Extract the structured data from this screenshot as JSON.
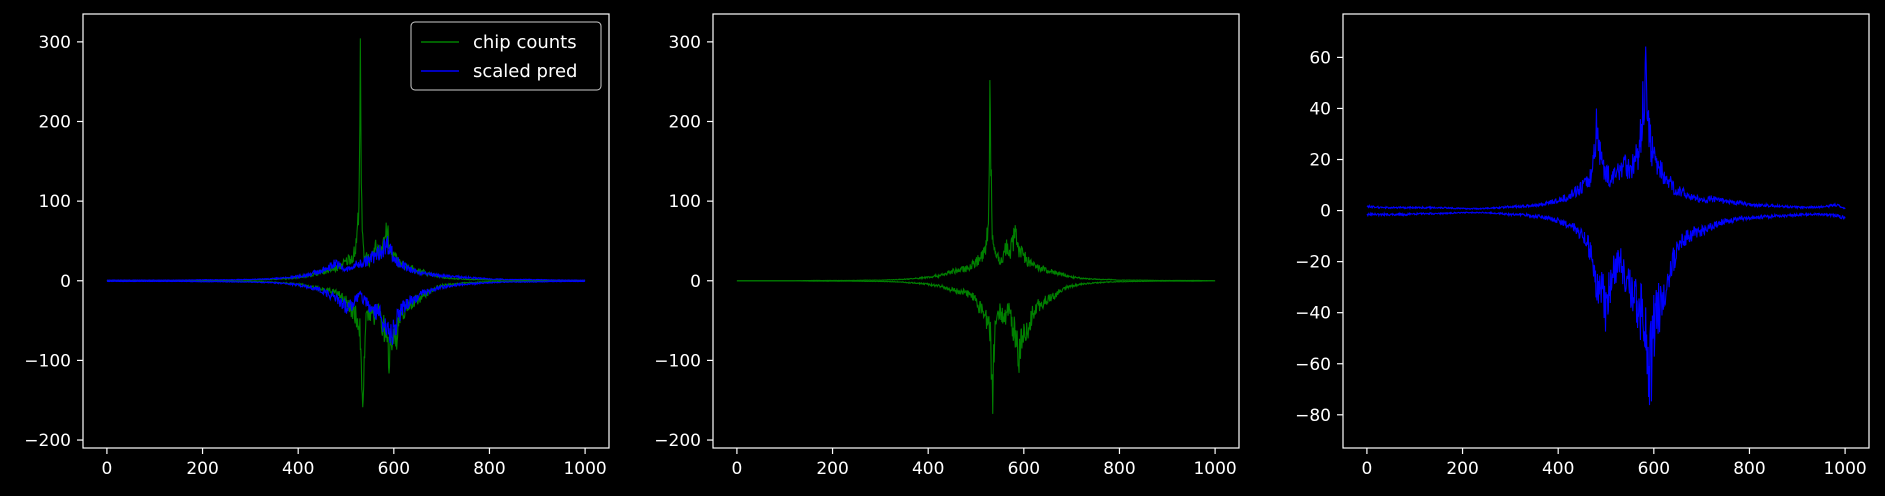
{
  "figure": {
    "background": "#000000",
    "axis_color": "#ffffff"
  },
  "chart_data": [
    {
      "type": "line",
      "xlim": [
        -50,
        1050
      ],
      "ylim": [
        -210,
        335
      ],
      "xticks": [
        0,
        200,
        400,
        600,
        800,
        1000
      ],
      "yticks": [
        -200,
        -100,
        0,
        100,
        200,
        300
      ],
      "legend": {
        "placement": "top-right"
      },
      "series": [
        {
          "name": "chip counts",
          "color": "#008000",
          "x": [
            0,
            40,
            80,
            120,
            160,
            200,
            240,
            280,
            300,
            320,
            340,
            360,
            380,
            400,
            410,
            420,
            430,
            440,
            450,
            460,
            470,
            480,
            490,
            500,
            505,
            510,
            515,
            520,
            525,
            528,
            530,
            532,
            535,
            538,
            540,
            545,
            550,
            555,
            560,
            565,
            570,
            575,
            580,
            585,
            588,
            590,
            595,
            600,
            605,
            610,
            620,
            630,
            640,
            650,
            660,
            670,
            680,
            690,
            700,
            720,
            740,
            760,
            780,
            800,
            840,
            880,
            920,
            960,
            1000
          ],
          "upper": [
            0,
            0,
            0,
            0,
            0.5,
            0.5,
            0.5,
            1,
            1,
            1.5,
            2,
            3,
            4,
            6,
            7,
            8,
            10,
            12,
            15,
            16,
            18,
            20,
            25,
            30,
            35,
            38,
            40,
            50,
            90,
            200,
            310,
            150,
            60,
            40,
            45,
            40,
            30,
            35,
            50,
            55,
            40,
            60,
            70,
            75,
            70,
            50,
            45,
            40,
            35,
            30,
            25,
            20,
            20,
            15,
            15,
            12,
            10,
            8,
            6,
            4,
            3,
            2,
            2,
            1,
            1,
            0.5,
            0.5,
            0.5,
            0
          ],
          "lower": [
            0,
            0,
            0,
            0,
            -0.5,
            -0.5,
            -0.5,
            -1,
            -1,
            -1.5,
            -2,
            -3,
            -4,
            -6,
            -7,
            -8,
            -10,
            -12,
            -15,
            -16,
            -18,
            -20,
            -25,
            -30,
            -40,
            -45,
            -50,
            -55,
            -70,
            -80,
            -90,
            -130,
            -183,
            -120,
            -80,
            -60,
            -50,
            -55,
            -60,
            -50,
            -45,
            -70,
            -80,
            -100,
            -110,
            -120,
            -90,
            -80,
            -100,
            -70,
            -50,
            -40,
            -35,
            -30,
            -25,
            -20,
            -15,
            -10,
            -8,
            -6,
            -4,
            -3,
            -2,
            -1.5,
            -1,
            -0.5,
            -0.5,
            -0.5,
            0
          ]
        },
        {
          "name": "scaled pred",
          "color": "#0000ff",
          "x": [
            0,
            40,
            80,
            120,
            160,
            200,
            240,
            280,
            300,
            320,
            340,
            360,
            380,
            400,
            410,
            420,
            430,
            440,
            450,
            460,
            470,
            480,
            490,
            500,
            510,
            520,
            530,
            540,
            550,
            560,
            570,
            580,
            590,
            600,
            610,
            620,
            630,
            640,
            650,
            660,
            680,
            700,
            720,
            740,
            760,
            780,
            800,
            840,
            880,
            920,
            960,
            1000
          ],
          "upper": [
            1,
            1,
            1,
            1,
            1,
            1.5,
            1.5,
            2,
            2,
            2.5,
            3,
            4,
            5,
            7,
            8,
            10,
            12,
            14,
            16,
            20,
            25,
            30,
            20,
            18,
            20,
            25,
            28,
            30,
            35,
            40,
            45,
            55,
            60,
            35,
            30,
            25,
            20,
            15,
            15,
            12,
            10,
            8,
            7,
            6,
            5,
            4,
            3,
            2,
            2,
            1.5,
            1,
            1
          ],
          "lower": [
            -1,
            -1,
            -1,
            -1,
            -1,
            -1.5,
            -1.5,
            -2,
            -2,
            -2.5,
            -3,
            -4,
            -5,
            -7,
            -8,
            -10,
            -12,
            -14,
            -16,
            -20,
            -25,
            -30,
            -35,
            -45,
            -40,
            -30,
            -25,
            -35,
            -40,
            -50,
            -55,
            -70,
            -85,
            -80,
            -60,
            -45,
            -35,
            -30,
            -25,
            -20,
            -15,
            -10,
            -8,
            -6,
            -5,
            -4,
            -3,
            -2,
            -2,
            -1.5,
            -1,
            -1
          ]
        }
      ]
    },
    {
      "type": "line",
      "xlim": [
        -50,
        1050
      ],
      "ylim": [
        -210,
        335
      ],
      "xticks": [
        0,
        200,
        400,
        600,
        800,
        1000
      ],
      "yticks": [
        -200,
        -100,
        0,
        100,
        200,
        300
      ],
      "series": [
        {
          "color": "#008000",
          "x": [
            0,
            40,
            80,
            120,
            160,
            200,
            240,
            280,
            300,
            320,
            340,
            360,
            380,
            400,
            410,
            420,
            430,
            440,
            450,
            460,
            470,
            480,
            490,
            500,
            505,
            510,
            515,
            520,
            525,
            528,
            530,
            532,
            535,
            538,
            540,
            545,
            550,
            555,
            560,
            565,
            570,
            575,
            580,
            585,
            588,
            590,
            595,
            600,
            605,
            610,
            620,
            630,
            640,
            650,
            660,
            670,
            680,
            690,
            700,
            720,
            740,
            760,
            780,
            800,
            840,
            880,
            920,
            960,
            1000
          ],
          "upper": [
            0,
            0,
            0,
            0,
            0.5,
            0.5,
            0.5,
            1,
            1,
            1.5,
            2,
            3,
            4,
            6,
            7,
            8,
            10,
            12,
            15,
            16,
            18,
            20,
            25,
            30,
            35,
            38,
            40,
            50,
            90,
            200,
            310,
            150,
            60,
            40,
            45,
            40,
            30,
            35,
            50,
            55,
            40,
            60,
            70,
            75,
            70,
            50,
            45,
            40,
            35,
            30,
            25,
            20,
            20,
            15,
            15,
            12,
            10,
            8,
            6,
            4,
            3,
            2,
            2,
            1,
            1,
            0.5,
            0.5,
            0.5,
            0
          ],
          "lower": [
            0,
            0,
            0,
            0,
            -0.5,
            -0.5,
            -0.5,
            -1,
            -1,
            -1.5,
            -2,
            -3,
            -4,
            -6,
            -7,
            -8,
            -10,
            -12,
            -15,
            -16,
            -18,
            -20,
            -25,
            -30,
            -40,
            -45,
            -50,
            -55,
            -70,
            -80,
            -90,
            -130,
            -183,
            -120,
            -80,
            -60,
            -50,
            -55,
            -60,
            -50,
            -45,
            -70,
            -80,
            -100,
            -110,
            -120,
            -90,
            -80,
            -100,
            -70,
            -50,
            -40,
            -35,
            -30,
            -25,
            -20,
            -15,
            -10,
            -8,
            -6,
            -4,
            -3,
            -2,
            -1.5,
            -1,
            -0.5,
            -0.5,
            -0.5,
            0
          ]
        }
      ]
    },
    {
      "type": "line",
      "xlim": [
        -50,
        1050
      ],
      "ylim": [
        -93,
        77
      ],
      "xticks": [
        0,
        200,
        400,
        600,
        800,
        1000
      ],
      "yticks": [
        -80,
        -60,
        -40,
        -20,
        0,
        20,
        40,
        60
      ],
      "series": [
        {
          "color": "#0000ff",
          "x": [
            0,
            40,
            80,
            120,
            160,
            200,
            240,
            280,
            300,
            320,
            340,
            360,
            380,
            400,
            420,
            440,
            460,
            470,
            480,
            490,
            500,
            510,
            520,
            530,
            540,
            550,
            560,
            570,
            580,
            585,
            590,
            595,
            600,
            610,
            620,
            630,
            640,
            650,
            660,
            680,
            700,
            720,
            740,
            760,
            780,
            800,
            840,
            880,
            920,
            960,
            980,
            1000
          ],
          "upper": [
            2,
            1.5,
            1.5,
            1.5,
            1.5,
            1,
            1,
            1.5,
            2,
            2,
            2.5,
            3,
            4,
            5,
            7,
            10,
            14,
            18,
            42,
            25,
            20,
            15,
            18,
            22,
            25,
            20,
            25,
            30,
            60,
            69,
            40,
            30,
            28,
            22,
            18,
            15,
            12,
            10,
            9,
            7,
            5,
            6,
            5,
            4,
            4,
            3,
            2.5,
            2,
            1.5,
            2,
            3,
            1
          ],
          "lower": [
            -2,
            -2,
            -2,
            -1.5,
            -1.5,
            -1,
            -1,
            -1.5,
            -2,
            -2,
            -2.5,
            -3,
            -4,
            -5,
            -7,
            -10,
            -15,
            -25,
            -38,
            -40,
            -50,
            -35,
            -30,
            -25,
            -35,
            -40,
            -45,
            -50,
            -55,
            -60,
            -86,
            -75,
            -60,
            -50,
            -40,
            -35,
            -25,
            -20,
            -15,
            -12,
            -10,
            -8,
            -6,
            -5,
            -4,
            -3.5,
            -3,
            -2.5,
            -2,
            -2,
            -2.5,
            -4
          ]
        }
      ]
    }
  ]
}
